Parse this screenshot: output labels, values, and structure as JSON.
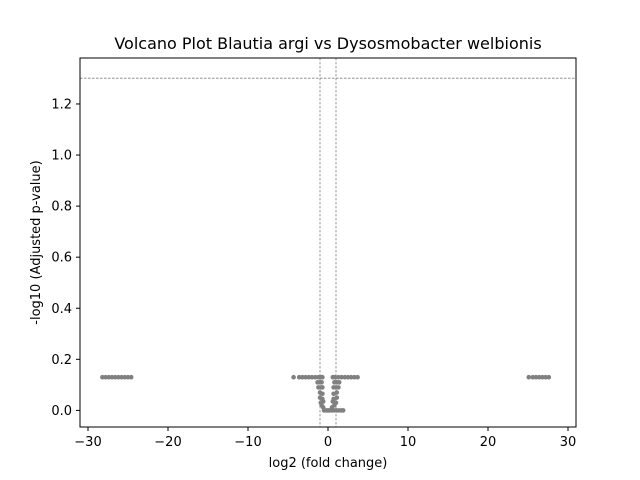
{
  "chart_data": {
    "type": "scatter",
    "title": "Volcano Plot Blautia argi vs Dysosmobacter welbionis",
    "xlabel": "log2 (fold change)",
    "ylabel": "-log10 (Adjusted p-value)",
    "xlim": [
      -31,
      31
    ],
    "ylim": [
      -0.065,
      1.38
    ],
    "xticks": [
      -30,
      -20,
      -10,
      0,
      10,
      20,
      30
    ],
    "xtick_labels": [
      "−30",
      "−20",
      "−10",
      "0",
      "10",
      "20",
      "30"
    ],
    "yticks": [
      0.0,
      0.2,
      0.4,
      0.6,
      0.8,
      1.0,
      1.2
    ],
    "ytick_labels": [
      "0.0",
      "0.2",
      "0.4",
      "0.6",
      "0.8",
      "1.0",
      "1.2"
    ],
    "grid": false,
    "reference_lines": {
      "horizontal": [
        1.301
      ],
      "vertical": [
        -1,
        1
      ]
    },
    "colors": {
      "points": "#808080",
      "reference_lines": "#808080"
    },
    "series": [
      {
        "values": [
          {
            "x": -28.2,
            "y": 0.13
          },
          {
            "x": -27.8,
            "y": 0.13
          },
          {
            "x": -27.4,
            "y": 0.13
          },
          {
            "x": -27.0,
            "y": 0.13
          },
          {
            "x": -26.6,
            "y": 0.13
          },
          {
            "x": -26.2,
            "y": 0.13
          },
          {
            "x": -25.8,
            "y": 0.13
          },
          {
            "x": -25.4,
            "y": 0.13
          },
          {
            "x": -25.0,
            "y": 0.13
          },
          {
            "x": -24.6,
            "y": 0.13
          },
          {
            "x": -4.3,
            "y": 0.13
          },
          {
            "x": -3.6,
            "y": 0.13
          },
          {
            "x": -3.2,
            "y": 0.13
          },
          {
            "x": -2.8,
            "y": 0.13
          },
          {
            "x": -2.4,
            "y": 0.13
          },
          {
            "x": -2.0,
            "y": 0.13
          },
          {
            "x": -1.6,
            "y": 0.13
          },
          {
            "x": -1.2,
            "y": 0.13
          },
          {
            "x": -0.9,
            "y": 0.13
          },
          {
            "x": -0.7,
            "y": 0.13
          },
          {
            "x": -1.3,
            "y": 0.11
          },
          {
            "x": -1.0,
            "y": 0.11
          },
          {
            "x": -0.8,
            "y": 0.11
          },
          {
            "x": -1.2,
            "y": 0.09
          },
          {
            "x": -0.9,
            "y": 0.09
          },
          {
            "x": -0.7,
            "y": 0.09
          },
          {
            "x": -1.0,
            "y": 0.07
          },
          {
            "x": -0.7,
            "y": 0.065
          },
          {
            "x": -1.0,
            "y": 0.05
          },
          {
            "x": -0.7,
            "y": 0.045
          },
          {
            "x": -0.9,
            "y": 0.03
          },
          {
            "x": -0.6,
            "y": 0.035
          },
          {
            "x": -0.8,
            "y": 0.02
          },
          {
            "x": -0.6,
            "y": 0.012
          },
          {
            "x": -0.5,
            "y": 0.0
          },
          {
            "x": -0.2,
            "y": 0.0
          },
          {
            "x": 0.0,
            "y": 0.0
          },
          {
            "x": 0.2,
            "y": 0.0
          },
          {
            "x": 0.5,
            "y": 0.0
          },
          {
            "x": 0.8,
            "y": 0.0
          },
          {
            "x": 1.1,
            "y": 0.0
          },
          {
            "x": 1.4,
            "y": 0.0
          },
          {
            "x": 1.7,
            "y": 0.0
          },
          {
            "x": 1.9,
            "y": 0.0
          },
          {
            "x": 0.5,
            "y": 0.012
          },
          {
            "x": 0.8,
            "y": 0.02
          },
          {
            "x": 0.6,
            "y": 0.035
          },
          {
            "x": 1.0,
            "y": 0.03
          },
          {
            "x": 0.7,
            "y": 0.045
          },
          {
            "x": 1.1,
            "y": 0.05
          },
          {
            "x": 0.7,
            "y": 0.065
          },
          {
            "x": 1.1,
            "y": 0.07
          },
          {
            "x": 0.7,
            "y": 0.09
          },
          {
            "x": 1.0,
            "y": 0.09
          },
          {
            "x": 1.3,
            "y": 0.09
          },
          {
            "x": 0.8,
            "y": 0.11
          },
          {
            "x": 1.1,
            "y": 0.11
          },
          {
            "x": 1.4,
            "y": 0.11
          },
          {
            "x": 0.6,
            "y": 0.13
          },
          {
            "x": 0.9,
            "y": 0.13
          },
          {
            "x": 1.3,
            "y": 0.13
          },
          {
            "x": 1.7,
            "y": 0.13
          },
          {
            "x": 2.1,
            "y": 0.13
          },
          {
            "x": 2.5,
            "y": 0.13
          },
          {
            "x": 2.9,
            "y": 0.13
          },
          {
            "x": 3.3,
            "y": 0.13
          },
          {
            "x": 3.7,
            "y": 0.13
          },
          {
            "x": 25.1,
            "y": 0.13
          },
          {
            "x": 25.6,
            "y": 0.13
          },
          {
            "x": 26.0,
            "y": 0.13
          },
          {
            "x": 26.4,
            "y": 0.13
          },
          {
            "x": 26.8,
            "y": 0.13
          },
          {
            "x": 27.2,
            "y": 0.13
          },
          {
            "x": 27.6,
            "y": 0.13
          }
        ]
      }
    ]
  }
}
